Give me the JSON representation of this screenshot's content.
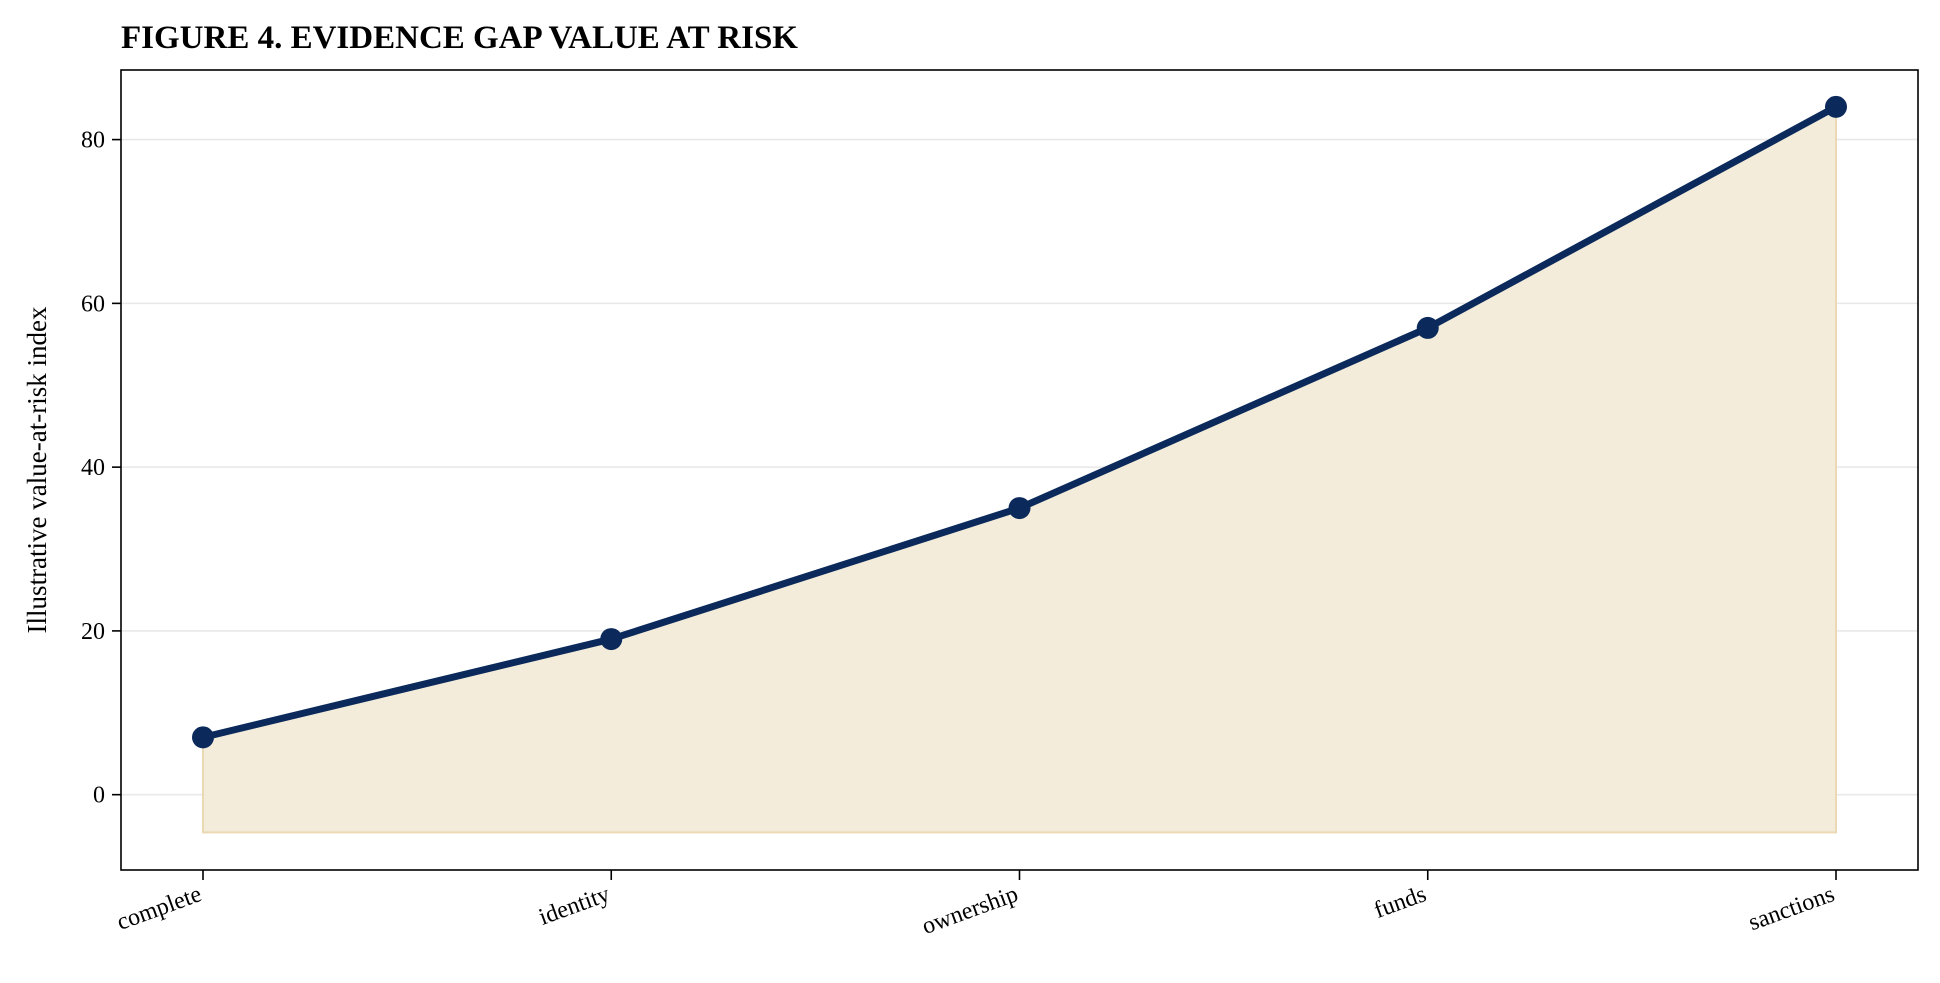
{
  "chart_data": {
    "type": "area",
    "title": "FIGURE 4. EVIDENCE GAP VALUE AT RISK",
    "xlabel": "",
    "ylabel": "Illustrative value-at-risk index",
    "categories": [
      "complete",
      "identity",
      "ownership",
      "funds",
      "sanctions"
    ],
    "values": [
      7,
      19,
      35,
      57,
      84
    ],
    "fill_baseline": -4.6,
    "ylim": [
      -9.2,
      88.5
    ],
    "yticks": [
      0,
      20,
      40,
      60,
      80
    ],
    "grid": "horizontal",
    "legend": "none",
    "colors": {
      "line": "#0b2a5b",
      "marker": "#0b2a5b",
      "fill": "#f3ecdb",
      "fill_edge": "#ead9b3",
      "grid": "#e8e8e8",
      "axes": "#000000"
    }
  }
}
